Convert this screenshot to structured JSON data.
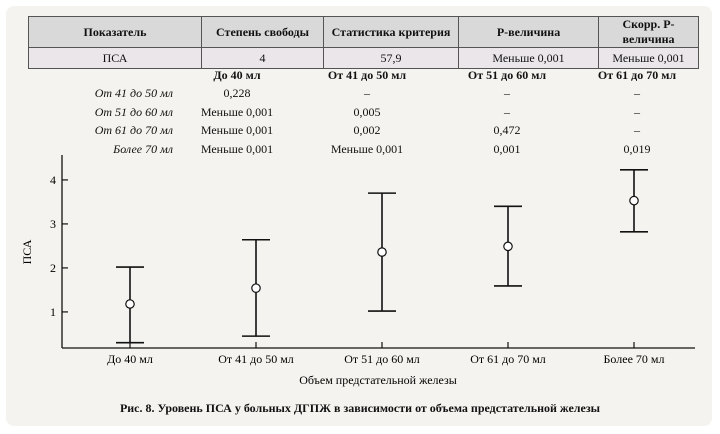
{
  "stats_table": {
    "headers": [
      "Показатель",
      "Степень свободы",
      "Статистика критерия",
      "Р-величина",
      "Скорр. Р-величина"
    ],
    "row": [
      "ПСА",
      "4",
      "57,9",
      "Меньше 0,001",
      "Меньше 0,001"
    ]
  },
  "pairwise": {
    "col_headers": [
      "До 40 мл",
      "От 41 до 50 мл",
      "От 51 до 60 мл",
      "От 61 до 70 мл"
    ],
    "rows": [
      {
        "label": "От 41 до 50 мл",
        "cells": [
          "0,228",
          "–",
          "–",
          "–"
        ]
      },
      {
        "label": "От 51 до 60 мл",
        "cells": [
          "Меньше 0,001",
          "0,005",
          "–",
          "–"
        ]
      },
      {
        "label": "От 61 до 70 мл",
        "cells": [
          "Меньше 0,001",
          "0,002",
          "0,472",
          "–"
        ]
      },
      {
        "label": "Более 70 мл",
        "cells": [
          "Меньше 0,001",
          "Меньше 0,001",
          "0,001",
          "0,019"
        ]
      }
    ]
  },
  "chart_data": {
    "type": "errorbar",
    "categories": [
      "До 40 мл",
      "От 41 до 50 мл",
      "От 51 до 60 мл",
      "От 61 до 70 мл",
      "Более 70 мл"
    ],
    "mean": [
      1.18,
      1.54,
      2.36,
      2.49,
      3.53
    ],
    "lower": [
      0.3,
      0.45,
      1.02,
      1.59,
      2.82
    ],
    "upper": [
      2.02,
      2.64,
      3.7,
      3.4,
      4.23
    ],
    "xlabel": "Объем предстательной железы",
    "ylabel": "ПСА",
    "yticks": [
      "1",
      "2",
      "3",
      "4"
    ],
    "ylim": [
      0.2,
      4.4
    ]
  },
  "caption": "Рис. 8. Уровень ПСА у больных ДГПЖ в зависимости от объема предстательной железы"
}
